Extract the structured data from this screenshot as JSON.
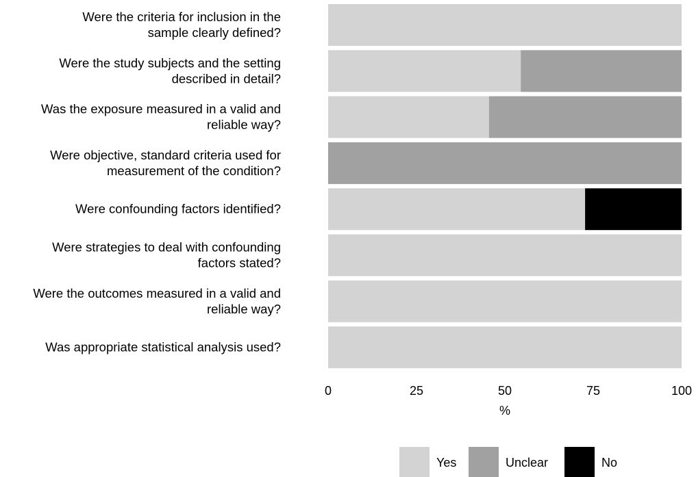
{
  "chart_data": {
    "type": "bar",
    "orientation": "horizontal",
    "stacked": true,
    "categories": [
      [
        "Were the criteria for inclusion in the",
        "sample clearly defined?"
      ],
      [
        "Were the study subjects and the setting",
        "described in detail?"
      ],
      [
        "Was the exposure measured in a valid and",
        "reliable way?"
      ],
      [
        "Were objective, standard criteria used for",
        "measurement of the condition?"
      ],
      [
        "Were confounding factors identified?"
      ],
      [
        "Were strategies to deal with confounding",
        "factors stated?"
      ],
      [
        "Were the outcomes measured in a valid and",
        "reliable way?"
      ],
      [
        "Was appropriate statistical analysis used?"
      ]
    ],
    "series": [
      {
        "name": "Yes",
        "color": "#d3d3d3",
        "values": [
          100,
          54.5,
          45.5,
          0,
          72.7,
          100,
          100,
          100
        ]
      },
      {
        "name": "Unclear",
        "color": "#a1a1a1",
        "values": [
          0,
          45.5,
          54.5,
          100,
          0,
          0,
          0,
          0
        ]
      },
      {
        "name": "No",
        "color": "#000000",
        "values": [
          0,
          0,
          0,
          0,
          27.3,
          0,
          0,
          0
        ]
      }
    ],
    "xlabel": "%",
    "xlim": [
      0,
      100
    ],
    "xticks": [
      "0",
      "25",
      "50",
      "75",
      "100"
    ],
    "grid": false,
    "legend_position": "bottom"
  }
}
